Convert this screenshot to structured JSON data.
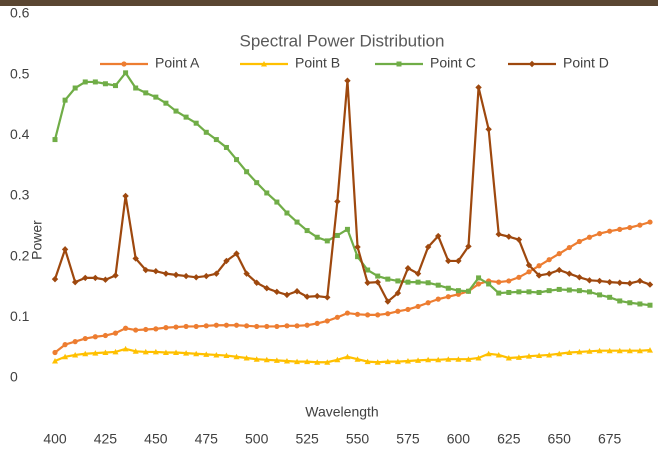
{
  "chart_data": {
    "type": "line",
    "title": "Spectral Power Distribution",
    "x_label": "Wavelength",
    "y_label": "Power",
    "x": [
      400,
      405,
      410,
      415,
      420,
      425,
      430,
      435,
      440,
      445,
      450,
      455,
      460,
      465,
      470,
      475,
      480,
      485,
      490,
      495,
      500,
      505,
      510,
      515,
      520,
      525,
      530,
      535,
      540,
      545,
      550,
      555,
      560,
      565,
      570,
      575,
      580,
      585,
      590,
      595,
      600,
      605,
      610,
      615,
      620,
      625,
      630,
      635,
      640,
      645,
      650,
      655,
      660,
      665,
      670,
      675,
      680,
      685,
      690,
      695
    ],
    "xlim": [
      400,
      695
    ],
    "xticks": [
      400,
      425,
      450,
      475,
      500,
      525,
      550,
      575,
      600,
      625,
      650,
      675
    ],
    "ylim": [
      0,
      0.6
    ],
    "yticks": [
      0,
      0.1,
      0.2,
      0.3,
      0.4,
      0.5,
      0.6
    ],
    "grid": false,
    "series": [
      {
        "name": "Point A",
        "color": "#ed7d31",
        "marker": "circle",
        "values": [
          0.042,
          0.055,
          0.06,
          0.065,
          0.068,
          0.07,
          0.074,
          0.082,
          0.079,
          0.08,
          0.081,
          0.083,
          0.084,
          0.085,
          0.085,
          0.086,
          0.087,
          0.087,
          0.087,
          0.086,
          0.085,
          0.085,
          0.085,
          0.086,
          0.086,
          0.087,
          0.09,
          0.094,
          0.1,
          0.107,
          0.105,
          0.104,
          0.104,
          0.106,
          0.11,
          0.113,
          0.118,
          0.124,
          0.13,
          0.134,
          0.138,
          0.143,
          0.155,
          0.16,
          0.158,
          0.16,
          0.166,
          0.175,
          0.185,
          0.195,
          0.205,
          0.215,
          0.225,
          0.232,
          0.238,
          0.242,
          0.245,
          0.248,
          0.252,
          0.257
        ]
      },
      {
        "name": "Point B",
        "color": "#ffc000",
        "marker": "triangle",
        "values": [
          0.028,
          0.035,
          0.038,
          0.04,
          0.041,
          0.042,
          0.043,
          0.048,
          0.044,
          0.043,
          0.043,
          0.042,
          0.042,
          0.041,
          0.04,
          0.039,
          0.038,
          0.037,
          0.035,
          0.033,
          0.031,
          0.03,
          0.029,
          0.028,
          0.027,
          0.027,
          0.026,
          0.026,
          0.03,
          0.035,
          0.031,
          0.027,
          0.026,
          0.027,
          0.027,
          0.028,
          0.029,
          0.03,
          0.03,
          0.031,
          0.031,
          0.031,
          0.033,
          0.04,
          0.038,
          0.033,
          0.034,
          0.036,
          0.037,
          0.038,
          0.04,
          0.042,
          0.043,
          0.044,
          0.045,
          0.045,
          0.045,
          0.045,
          0.045,
          0.046
        ]
      },
      {
        "name": "Point C",
        "color": "#70ad47",
        "marker": "square",
        "values": [
          0.393,
          0.458,
          0.478,
          0.488,
          0.488,
          0.485,
          0.482,
          0.503,
          0.478,
          0.47,
          0.463,
          0.453,
          0.44,
          0.43,
          0.42,
          0.405,
          0.393,
          0.38,
          0.36,
          0.34,
          0.322,
          0.305,
          0.29,
          0.272,
          0.257,
          0.243,
          0.232,
          0.226,
          0.235,
          0.245,
          0.2,
          0.178,
          0.168,
          0.163,
          0.16,
          0.158,
          0.158,
          0.157,
          0.153,
          0.148,
          0.144,
          0.143,
          0.165,
          0.155,
          0.14,
          0.141,
          0.142,
          0.142,
          0.141,
          0.144,
          0.146,
          0.145,
          0.144,
          0.142,
          0.137,
          0.133,
          0.127,
          0.124,
          0.122,
          0.12
        ]
      },
      {
        "name": "Point D",
        "color": "#9e480e",
        "marker": "diamond",
        "values": [
          0.163,
          0.212,
          0.158,
          0.165,
          0.165,
          0.162,
          0.169,
          0.3,
          0.197,
          0.178,
          0.176,
          0.172,
          0.17,
          0.168,
          0.166,
          0.168,
          0.172,
          0.193,
          0.205,
          0.172,
          0.157,
          0.148,
          0.142,
          0.137,
          0.143,
          0.134,
          0.135,
          0.133,
          0.291,
          0.49,
          0.216,
          0.157,
          0.158,
          0.126,
          0.14,
          0.181,
          0.172,
          0.216,
          0.234,
          0.193,
          0.193,
          0.217,
          0.479,
          0.41,
          0.237,
          0.233,
          0.228,
          0.186,
          0.169,
          0.172,
          0.178,
          0.172,
          0.166,
          0.161,
          0.16,
          0.158,
          0.157,
          0.156,
          0.16,
          0.154
        ]
      }
    ]
  }
}
